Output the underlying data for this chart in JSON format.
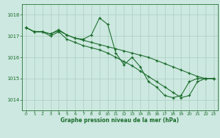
{
  "background_color": "#cce8e0",
  "grid_color": "#aaccbb",
  "line_color": "#1a6b2a",
  "ylim": [
    1013.5,
    1018.5
  ],
  "yticks": [
    1014,
    1015,
    1016,
    1017,
    1018
  ],
  "xlim": [
    -0.5,
    23.5
  ],
  "xticks": [
    0,
    1,
    2,
    3,
    4,
    5,
    6,
    7,
    8,
    9,
    10,
    11,
    12,
    13,
    14,
    15,
    16,
    17,
    18,
    19,
    20,
    21,
    22,
    23
  ],
  "xlabel": "Graphe pression niveau de la mer (hPa)",
  "series": [
    [
      1017.4,
      1017.2,
      1017.2,
      1017.1,
      1017.25,
      1017.05,
      1016.9,
      1016.8,
      1016.7,
      1016.6,
      1016.5,
      1016.4,
      1016.3,
      1016.2,
      1016.1,
      1016.0,
      1015.85,
      1015.7,
      1015.55,
      1015.4,
      1015.25,
      1015.1,
      1015.0,
      1015.0
    ],
    [
      1017.4,
      1017.2,
      1017.2,
      1017.1,
      1017.3,
      1017.05,
      1016.9,
      1016.85,
      1017.05,
      1017.85,
      1017.55,
      1016.2,
      1015.65,
      1016.0,
      1015.55,
      1014.85,
      1014.6,
      1014.2,
      1014.1,
      1014.2,
      1014.85,
      1015.0,
      1015.0,
      1015.0
    ],
    [
      1017.4,
      1017.2,
      1017.2,
      1017.0,
      1017.2,
      1016.85,
      1016.7,
      1016.55,
      1016.45,
      1016.35,
      1016.2,
      1016.0,
      1015.8,
      1015.6,
      1015.35,
      1015.1,
      1014.85,
      1014.6,
      1014.35,
      1014.1,
      1014.2,
      1014.85,
      1015.0,
      1015.0
    ]
  ]
}
